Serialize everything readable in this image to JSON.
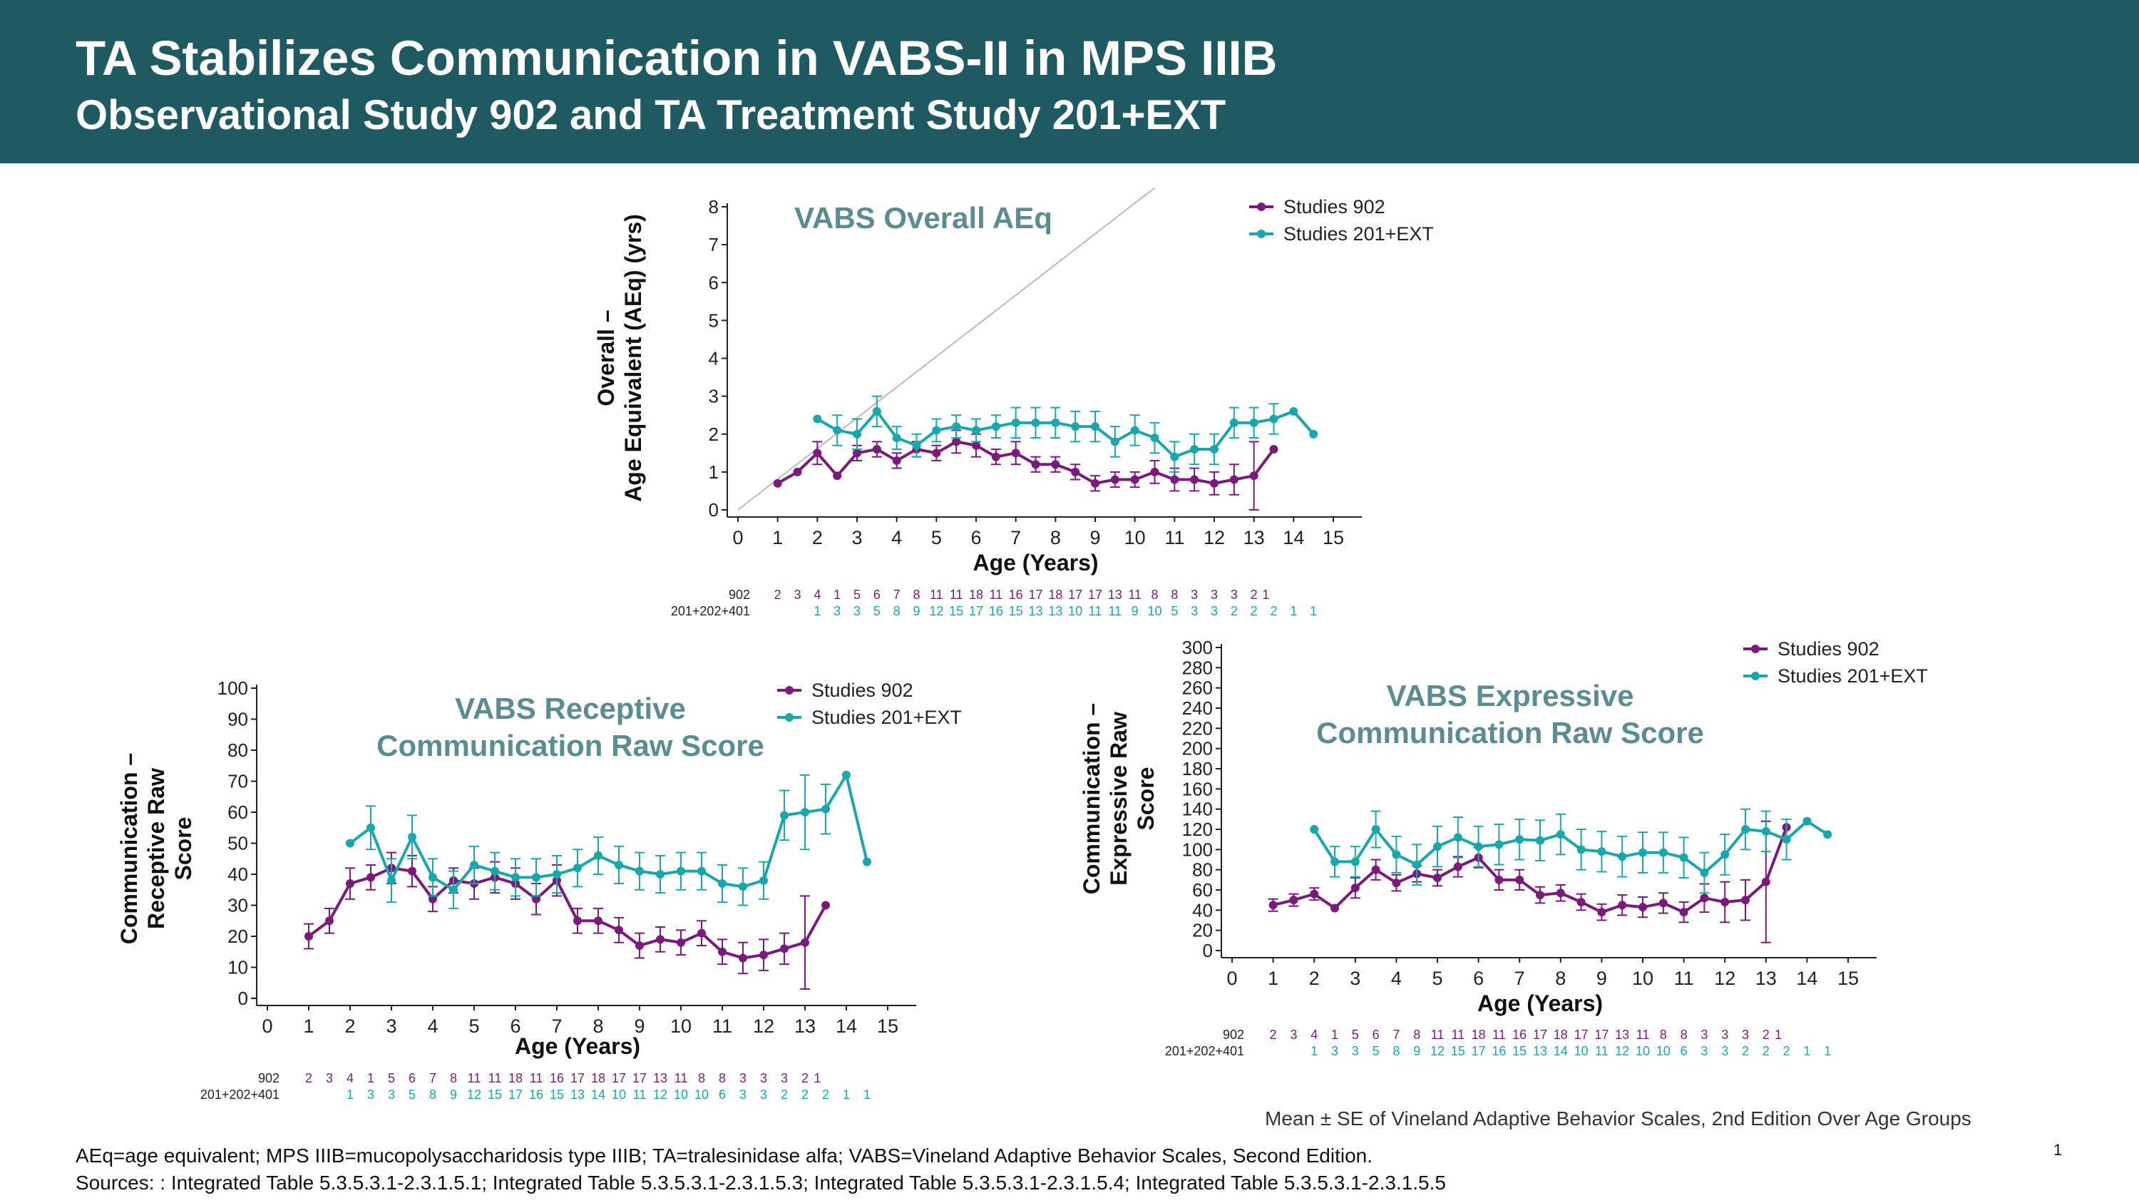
{
  "slide": {
    "title": "TA Stabilizes Communication in VABS-II in MPS IIIB",
    "subtitle": "Observational Study 902 and TA Treatment Study 201+EXT",
    "footnote_abbrev": "AEq=age equivalent; MPS IIIB=mucopolysaccharidosis type IIIB; TA=tralesinidase alfa; VABS=Vineland Adaptive Behavior Scales, Second Edition.",
    "footnote_sources": "Sources: : Integrated Table 5.3.5.3.1-2.3.1.5.1; Integrated Table 5.3.5.3.1-2.3.1.5.3; Integrated Table 5.3.5.3.1-2.3.1.5.4; Integrated Table 5.3.5.3.1-2.3.1.5.5",
    "mean_note": "Mean ± SE of Vineland Adaptive Behavior Scales, 2nd Edition Over Age Groups",
    "page_number": "1"
  },
  "colors": {
    "banner": "#1f5a63",
    "study902": "#7b1a7b",
    "study201": "#1aa6ad",
    "chart_title": "#5b8d90"
  },
  "chart_data": [
    {
      "id": "overall",
      "type": "line",
      "title": "VABS Overall AEq",
      "ylabel_lines": [
        "Overall –",
        "Age Equivalent (AEq) (yrs)"
      ],
      "xlabel": "Age (Years)",
      "xlim": [
        0,
        15
      ],
      "ylim": [
        0,
        8
      ],
      "xticks": [
        "0",
        "1",
        "2",
        "3",
        "4",
        "5",
        "6",
        "7",
        "8",
        "9",
        "10",
        "11",
        "12",
        "13",
        "14",
        "15"
      ],
      "yticks": [
        "0",
        "1",
        "2",
        "3",
        "4",
        "5",
        "6",
        "7",
        "8"
      ],
      "identity_line": true,
      "series": [
        {
          "name": "Studies 902",
          "key": "s902",
          "x": [
            1,
            1.5,
            2,
            2.5,
            3,
            3.5,
            4,
            4.5,
            5,
            5.5,
            6,
            6.5,
            7,
            7.5,
            8,
            8.5,
            9,
            9.5,
            10,
            10.5,
            11,
            11.5,
            12,
            12.5,
            13,
            13.5
          ],
          "y": [
            0.7,
            1.0,
            1.5,
            0.9,
            1.5,
            1.6,
            1.3,
            1.6,
            1.5,
            1.8,
            1.7,
            1.4,
            1.5,
            1.2,
            1.2,
            1.0,
            0.7,
            0.8,
            0.8,
            1.0,
            0.8,
            0.8,
            0.7,
            0.8,
            0.9,
            1.6
          ],
          "err": [
            0,
            0,
            0.3,
            0,
            0.2,
            0.2,
            0.2,
            0.2,
            0.2,
            0.3,
            0.3,
            0.2,
            0.3,
            0.2,
            0.2,
            0.2,
            0.2,
            0.2,
            0.2,
            0.3,
            0.3,
            0.3,
            0.3,
            0.4,
            0.9,
            0
          ]
        },
        {
          "name": "Studies 201+EXT",
          "key": "s201",
          "x": [
            2,
            2.5,
            3,
            3.5,
            4,
            4.5,
            5,
            5.5,
            6,
            6.5,
            7,
            7.5,
            8,
            8.5,
            9,
            9.5,
            10,
            10.5,
            11,
            11.5,
            12,
            12.5,
            13,
            13.5,
            14,
            14.5
          ],
          "y": [
            2.4,
            2.1,
            2.0,
            2.6,
            1.9,
            1.7,
            2.1,
            2.2,
            2.1,
            2.2,
            2.3,
            2.3,
            2.3,
            2.2,
            2.2,
            1.8,
            2.1,
            1.9,
            1.4,
            1.6,
            1.6,
            2.3,
            2.3,
            2.4,
            2.6,
            2.0
          ],
          "err": [
            0,
            0.4,
            0.4,
            0.4,
            0.3,
            0.3,
            0.3,
            0.3,
            0.3,
            0.3,
            0.4,
            0.4,
            0.4,
            0.4,
            0.4,
            0.4,
            0.4,
            0.4,
            0.4,
            0.4,
            0.4,
            0.4,
            0.4,
            0.4,
            0,
            0
          ]
        }
      ],
      "n_rows": [
        {
          "label": "902",
          "key": "s902",
          "x": [
            1,
            1.5,
            2,
            2.5,
            3,
            3.5,
            4,
            4.5,
            5,
            5.5,
            6,
            6.5,
            7,
            7.5,
            8,
            8.5,
            9,
            9.5,
            10,
            10.5,
            11,
            11.5,
            12,
            12.5,
            13
          ],
          "values": [
            "2",
            "3",
            "4",
            "1",
            "5",
            "6",
            "7",
            "8",
            "11",
            "11",
            "18",
            "11",
            "16",
            "17",
            "18",
            "17",
            "17",
            "13",
            "11",
            "8",
            "8",
            "3",
            "3",
            "3",
            "2"
          ]
        },
        {
          "label": "201+202+401",
          "key": "s201",
          "x": [
            2,
            2.5,
            3,
            3.5,
            4,
            4.5,
            5,
            5.5,
            6,
            6.5,
            7,
            7.5,
            8,
            8.5,
            9,
            9.5,
            10,
            10.5,
            11,
            11.5,
            12,
            12.5,
            13,
            13.5,
            14,
            14.5
          ],
          "values": [
            "1",
            "3",
            "3",
            "5",
            "8",
            "9",
            "12",
            "15",
            "17",
            "16",
            "15",
            "13",
            "13",
            "10",
            "11",
            "11",
            "9",
            "10",
            "5",
            "3",
            "3",
            "2",
            "2",
            "2",
            "1",
            "1"
          ]
        }
      ],
      "extra_row_values": [
        {
          "key": "s902",
          "x": 13.3,
          "value": "1"
        }
      ]
    },
    {
      "id": "receptive",
      "type": "line",
      "title_lines": [
        "VABS Receptive",
        "Communication Raw Score"
      ],
      "ylabel_lines": [
        "Communication –",
        "Receptive Raw",
        "Score"
      ],
      "xlabel": "Age (Years)",
      "xlim": [
        0,
        15
      ],
      "ylim": [
        0,
        100
      ],
      "xticks": [
        "0",
        "1",
        "2",
        "3",
        "4",
        "5",
        "6",
        "7",
        "8",
        "9",
        "10",
        "11",
        "12",
        "13",
        "14",
        "15"
      ],
      "yticks": [
        "0",
        "10",
        "20",
        "30",
        "40",
        "50",
        "60",
        "70",
        "80",
        "90",
        "100"
      ],
      "series": [
        {
          "name": "Studies 902",
          "key": "s902",
          "x": [
            1,
            1.5,
            2,
            2.5,
            3,
            3.5,
            4,
            4.5,
            5,
            5.5,
            6,
            6.5,
            7,
            7.5,
            8,
            8.5,
            9,
            9.5,
            10,
            10.5,
            11,
            11.5,
            12,
            12.5,
            13,
            13.5
          ],
          "y": [
            20,
            25,
            37,
            39,
            42,
            41,
            32,
            38,
            37,
            39,
            37,
            32,
            38,
            25,
            25,
            22,
            17,
            19,
            18,
            21,
            15,
            13,
            14,
            16,
            18,
            30
          ],
          "err": [
            4,
            4,
            5,
            4,
            5,
            5,
            4,
            4,
            5,
            5,
            5,
            5,
            5,
            4,
            4,
            4,
            4,
            4,
            4,
            4,
            4,
            5,
            5,
            5,
            15,
            0
          ]
        },
        {
          "name": "Studies 201+EXT",
          "key": "s201",
          "x": [
            2,
            2.5,
            3,
            3.5,
            4,
            4.5,
            5,
            5.5,
            6,
            6.5,
            7,
            7.5,
            8,
            8.5,
            9,
            9.5,
            10,
            10.5,
            11,
            11.5,
            12,
            12.5,
            13,
            13.5,
            14,
            14.5
          ],
          "y": [
            50,
            55,
            38,
            52,
            39,
            35,
            43,
            41,
            39,
            39,
            40,
            42,
            46,
            43,
            41,
            40,
            41,
            41,
            37,
            36,
            38,
            59,
            60,
            61,
            72,
            44
          ],
          "err": [
            0,
            7,
            7,
            7,
            6,
            6,
            6,
            6,
            6,
            6,
            6,
            6,
            6,
            6,
            6,
            6,
            6,
            6,
            6,
            6,
            6,
            8,
            12,
            8,
            0,
            0
          ]
        }
      ],
      "n_rows": [
        {
          "label": "902",
          "key": "s902",
          "x": [
            1,
            1.5,
            2,
            2.5,
            3,
            3.5,
            4,
            4.5,
            5,
            5.5,
            6,
            6.5,
            7,
            7.5,
            8,
            8.5,
            9,
            9.5,
            10,
            10.5,
            11,
            11.5,
            12,
            12.5,
            13
          ],
          "values": [
            "2",
            "3",
            "4",
            "1",
            "5",
            "6",
            "7",
            "8",
            "11",
            "11",
            "18",
            "11",
            "16",
            "17",
            "18",
            "17",
            "17",
            "13",
            "11",
            "8",
            "8",
            "3",
            "3",
            "3",
            "2"
          ]
        },
        {
          "label": "201+202+401",
          "key": "s201",
          "x": [
            2,
            2.5,
            3,
            3.5,
            4,
            4.5,
            5,
            5.5,
            6,
            6.5,
            7,
            7.5,
            8,
            8.5,
            9,
            9.5,
            10,
            10.5,
            11,
            11.5,
            12,
            12.5,
            13,
            13.5,
            14,
            14.5
          ],
          "values": [
            "1",
            "3",
            "3",
            "5",
            "8",
            "9",
            "12",
            "15",
            "17",
            "16",
            "15",
            "13",
            "14",
            "10",
            "11",
            "12",
            "10",
            "10",
            "6",
            "3",
            "3",
            "2",
            "2",
            "2",
            "1",
            "1"
          ]
        }
      ],
      "extra_row_values": [
        {
          "key": "s902",
          "x": 13.3,
          "value": "1"
        }
      ]
    },
    {
      "id": "expressive",
      "type": "line",
      "title_lines": [
        "VABS Expressive",
        "Communication Raw Score"
      ],
      "ylabel_lines": [
        "Communication –",
        "Expressive Raw",
        "Score"
      ],
      "xlabel": "Age (Years)",
      "xlim": [
        0,
        15
      ],
      "ylim": [
        0,
        300
      ],
      "xticks": [
        "0",
        "1",
        "2",
        "3",
        "4",
        "5",
        "6",
        "7",
        "8",
        "9",
        "10",
        "11",
        "12",
        "13",
        "14",
        "15"
      ],
      "yticks": [
        "0",
        "20",
        "40",
        "60",
        "80",
        "100",
        "120",
        "140",
        "160",
        "180",
        "200",
        "220",
        "240",
        "260",
        "280",
        "300"
      ],
      "series": [
        {
          "name": "Studies 902",
          "key": "s902",
          "x": [
            1,
            1.5,
            2,
            2.5,
            3,
            3.5,
            4,
            4.5,
            5,
            5.5,
            6,
            6.5,
            7,
            7.5,
            8,
            8.5,
            9,
            9.5,
            10,
            10.5,
            11,
            11.5,
            12,
            12.5,
            13,
            13.5
          ],
          "y": [
            45,
            50,
            56,
            42,
            62,
            80,
            67,
            76,
            72,
            83,
            92,
            70,
            70,
            55,
            57,
            48,
            38,
            45,
            43,
            47,
            38,
            52,
            48,
            50,
            68,
            122
          ],
          "err": [
            6,
            6,
            6,
            0,
            10,
            10,
            8,
            8,
            8,
            10,
            10,
            10,
            10,
            8,
            8,
            8,
            8,
            10,
            10,
            10,
            10,
            14,
            20,
            20,
            60,
            0
          ]
        },
        {
          "name": "Studies 201+EXT",
          "key": "s201",
          "x": [
            2,
            2.5,
            3,
            3.5,
            4,
            4.5,
            5,
            5.5,
            6,
            6.5,
            7,
            7.5,
            8,
            8.5,
            9,
            9.5,
            10,
            10.5,
            11,
            11.5,
            12,
            12.5,
            13,
            13.5,
            14,
            14.5
          ],
          "y": [
            120,
            88,
            88,
            120,
            95,
            85,
            103,
            112,
            103,
            105,
            110,
            109,
            115,
            100,
            98,
            93,
            97,
            97,
            92,
            77,
            95,
            120,
            118,
            110,
            128,
            115
          ],
          "err": [
            0,
            15,
            15,
            18,
            18,
            20,
            20,
            20,
            20,
            20,
            20,
            20,
            20,
            20,
            20,
            20,
            20,
            20,
            20,
            20,
            20,
            20,
            20,
            20,
            0,
            0
          ]
        }
      ],
      "n_rows": [
        {
          "label": "902",
          "key": "s902",
          "x": [
            1,
            1.5,
            2,
            2.5,
            3,
            3.5,
            4,
            4.5,
            5,
            5.5,
            6,
            6.5,
            7,
            7.5,
            8,
            8.5,
            9,
            9.5,
            10,
            10.5,
            11,
            11.5,
            12,
            12.5,
            13
          ],
          "values": [
            "2",
            "3",
            "4",
            "1",
            "5",
            "6",
            "7",
            "8",
            "11",
            "11",
            "18",
            "11",
            "16",
            "17",
            "18",
            "17",
            "17",
            "13",
            "11",
            "8",
            "8",
            "3",
            "3",
            "3",
            "2"
          ]
        },
        {
          "label": "201+202+401",
          "key": "s201",
          "x": [
            2,
            2.5,
            3,
            3.5,
            4,
            4.5,
            5,
            5.5,
            6,
            6.5,
            7,
            7.5,
            8,
            8.5,
            9,
            9.5,
            10,
            10.5,
            11,
            11.5,
            12,
            12.5,
            13,
            13.5,
            14,
            14.5
          ],
          "values": [
            "1",
            "3",
            "3",
            "5",
            "8",
            "9",
            "12",
            "15",
            "17",
            "16",
            "15",
            "13",
            "14",
            "10",
            "11",
            "12",
            "10",
            "10",
            "6",
            "3",
            "3",
            "2",
            "2",
            "2",
            "1",
            "1"
          ]
        }
      ],
      "extra_row_values": [
        {
          "key": "s902",
          "x": 13.3,
          "value": "1"
        }
      ]
    }
  ]
}
